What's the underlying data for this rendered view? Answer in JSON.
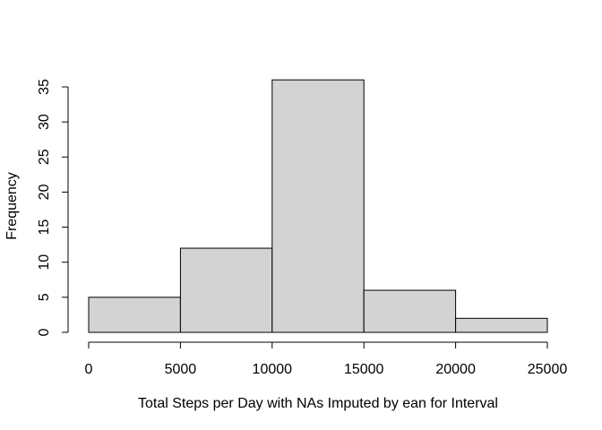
{
  "chart_data": {
    "type": "bar",
    "title": "",
    "xlabel": "Total Steps per Day with NAs Imputed by ean for Interval",
    "ylabel": "Frequency",
    "bins": [
      {
        "from": 0,
        "to": 5000,
        "count": 5
      },
      {
        "from": 5000,
        "to": 10000,
        "count": 12
      },
      {
        "from": 10000,
        "to": 15000,
        "count": 36
      },
      {
        "from": 15000,
        "to": 20000,
        "count": 6
      },
      {
        "from": 20000,
        "to": 25000,
        "count": 2
      }
    ],
    "xlim": [
      0,
      25000
    ],
    "ylim": [
      0,
      35
    ],
    "x_ticks": [
      0,
      5000,
      10000,
      15000,
      20000,
      25000
    ],
    "x_tick_labels": [
      "0",
      "5000",
      "10000",
      "15000",
      "20000",
      "25000"
    ],
    "y_ticks": [
      0,
      5,
      10,
      15,
      20,
      25,
      30,
      35
    ],
    "y_tick_labels": [
      "0",
      "5",
      "10",
      "15",
      "20",
      "25",
      "30",
      "35"
    ],
    "bar_color": "#d3d3d3",
    "grid": false
  }
}
